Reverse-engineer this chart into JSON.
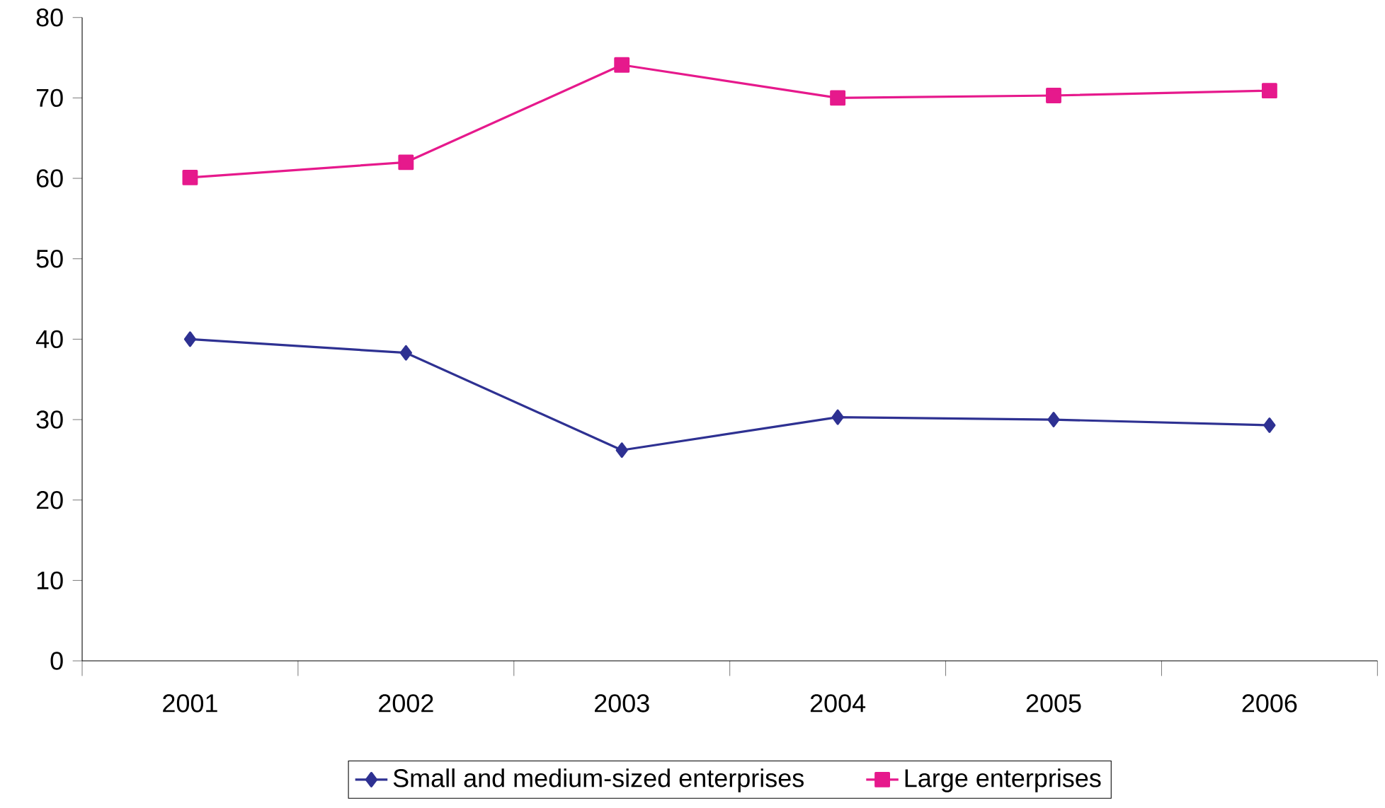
{
  "chart_data": {
    "type": "line",
    "categories": [
      "2001",
      "2002",
      "2003",
      "2004",
      "2005",
      "2006"
    ],
    "series": [
      {
        "name": "Small and medium-sized enterprises",
        "color": "#2e3192",
        "marker": "diamond",
        "values": [
          40,
          38.3,
          26.2,
          30.3,
          30,
          29.3
        ]
      },
      {
        "name": "Large enterprises",
        "color": "#e6198c",
        "marker": "square",
        "values": [
          60.1,
          62,
          74.1,
          70,
          70.3,
          70.9
        ]
      }
    ],
    "ylim": [
      0,
      80
    ],
    "yticks": [
      0,
      10,
      20,
      30,
      40,
      50,
      60,
      70,
      80
    ],
    "grid": false,
    "legend": "bottom",
    "line_style": "solid"
  }
}
